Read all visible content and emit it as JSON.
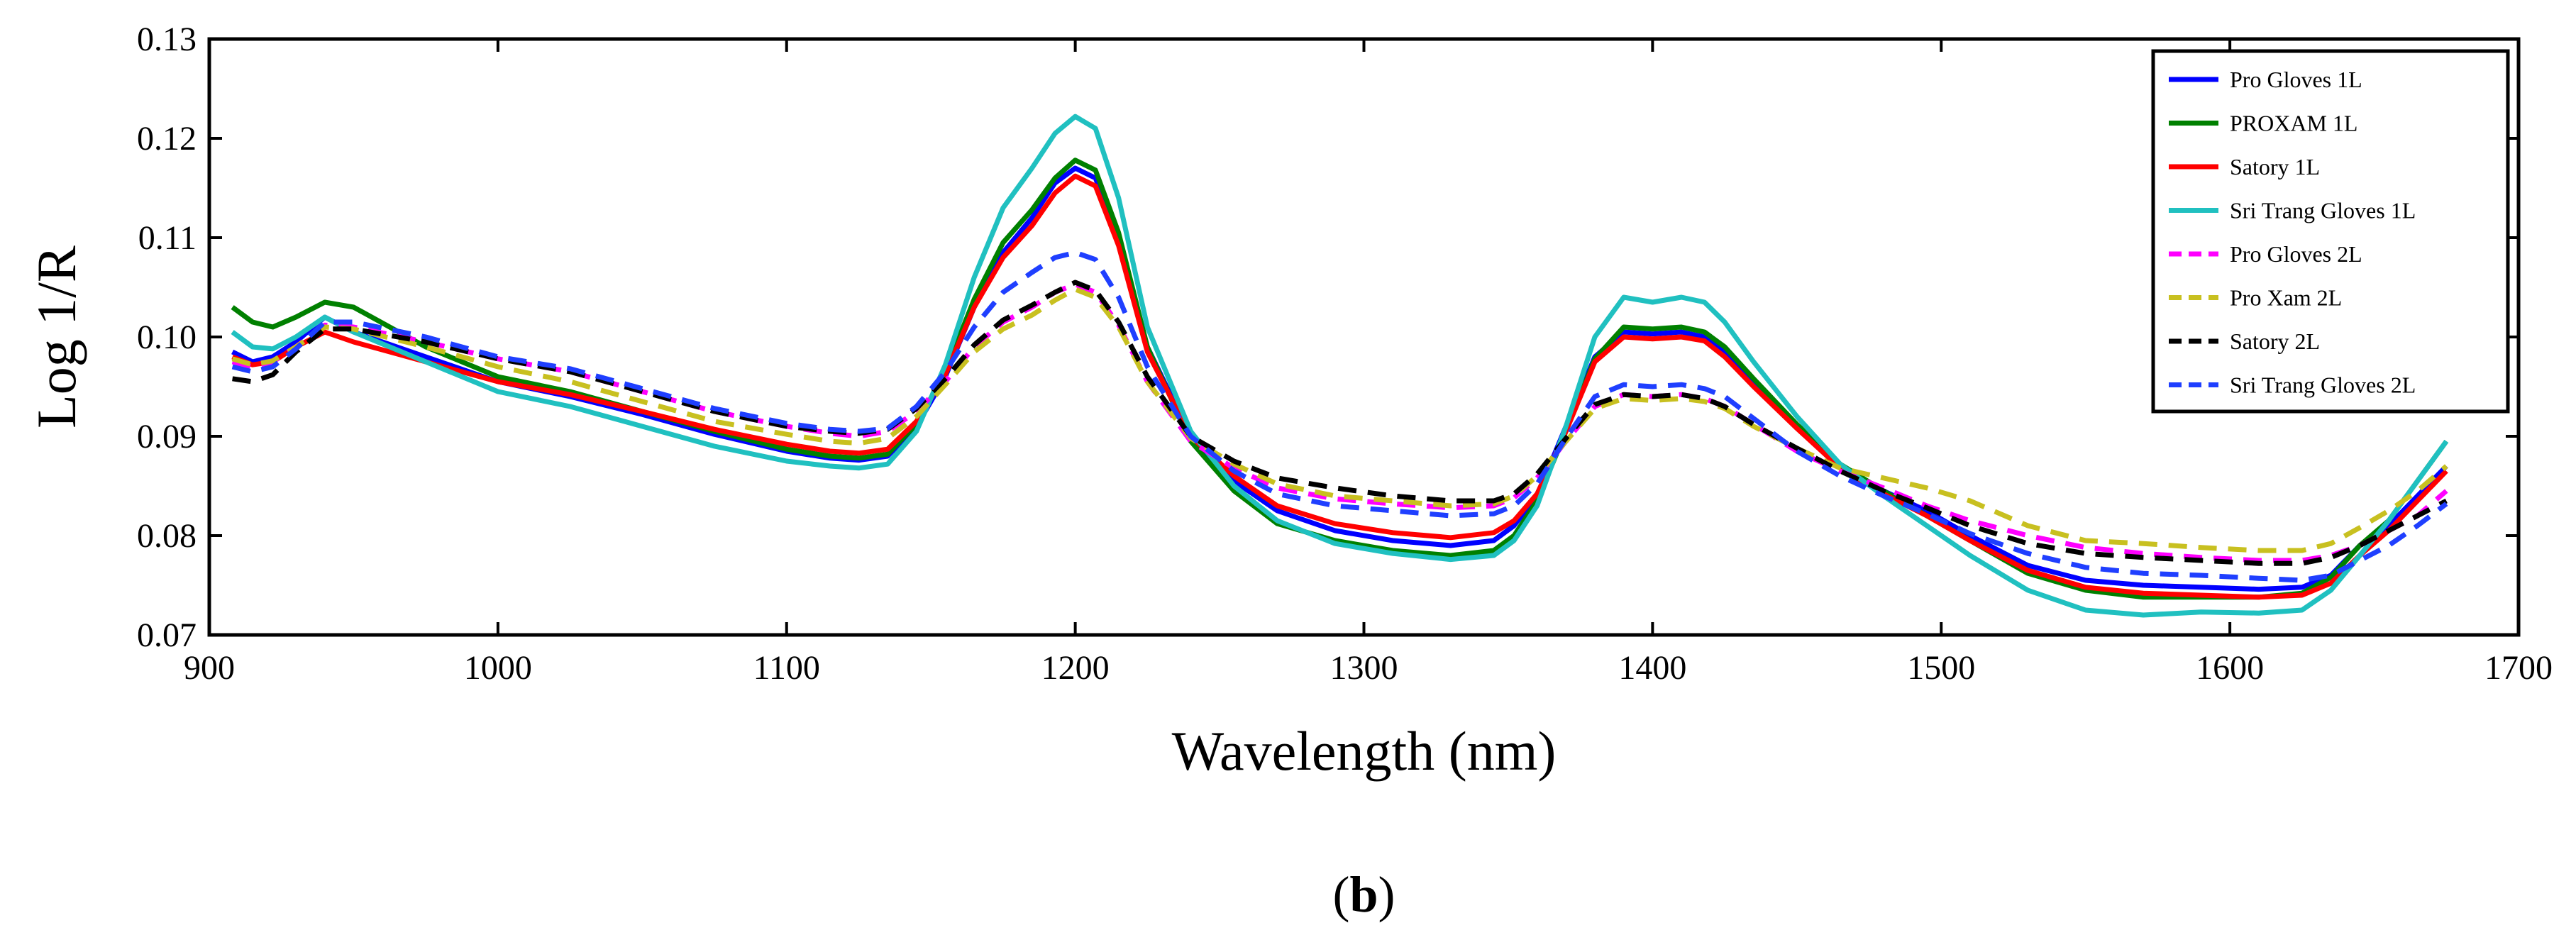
{
  "chart_data": {
    "type": "line",
    "xlabel": "Wavelength (nm)",
    "ylabel": "Log 1/R",
    "xlim": [
      900,
      1700
    ],
    "ylim": [
      0.07,
      0.13
    ],
    "x_ticks": [
      900,
      1000,
      1100,
      1200,
      1300,
      1400,
      1500,
      1600,
      1700
    ],
    "x_tick_labels": [
      "900",
      "1000",
      "1100",
      "1200",
      "1300",
      "1400",
      "1500",
      "1600",
      "1700"
    ],
    "y_ticks": [
      0.07,
      0.08,
      0.09,
      0.1,
      0.11,
      0.12,
      0.13
    ],
    "y_tick_labels": [
      "0.07",
      "0.08",
      "0.09",
      "0.10",
      "0.11",
      "0.12",
      "0.13"
    ],
    "grid": false,
    "legend_position": "top-right",
    "caption_open": "(",
    "caption_letter": "b",
    "caption_close": ")",
    "x": [
      908,
      915,
      922,
      930,
      940,
      950,
      975,
      1000,
      1025,
      1050,
      1075,
      1100,
      1115,
      1125,
      1135,
      1145,
      1155,
      1165,
      1175,
      1185,
      1193,
      1200,
      1207,
      1215,
      1225,
      1240,
      1255,
      1270,
      1290,
      1310,
      1330,
      1345,
      1352,
      1360,
      1370,
      1380,
      1390,
      1400,
      1410,
      1418,
      1425,
      1435,
      1450,
      1465,
      1480,
      1495,
      1510,
      1530,
      1550,
      1570,
      1590,
      1610,
      1625,
      1635,
      1645,
      1655,
      1665,
      1675
    ],
    "series": [
      {
        "name": "Pro Gloves 1L",
        "color": "#0000ff",
        "dash": "solid",
        "values": [
          0.0985,
          0.0975,
          0.098,
          0.0995,
          0.102,
          0.1005,
          0.098,
          0.0955,
          0.094,
          0.0922,
          0.0902,
          0.0885,
          0.0878,
          0.0876,
          0.088,
          0.091,
          0.096,
          0.103,
          0.1085,
          0.112,
          0.1155,
          0.117,
          0.116,
          0.11,
          0.099,
          0.09,
          0.0855,
          0.0825,
          0.0805,
          0.0795,
          0.079,
          0.0795,
          0.081,
          0.084,
          0.091,
          0.098,
          0.1005,
          0.1003,
          0.1005,
          0.1,
          0.0985,
          0.0955,
          0.091,
          0.087,
          0.0845,
          0.0825,
          0.08,
          0.077,
          0.0755,
          0.075,
          0.0748,
          0.0746,
          0.0748,
          0.076,
          0.079,
          0.081,
          0.084,
          0.087
        ]
      },
      {
        "name": "PROXAM 1L",
        "color": "#008000",
        "dash": "solid",
        "values": [
          0.103,
          0.1015,
          0.101,
          0.102,
          0.1035,
          0.103,
          0.099,
          0.096,
          0.0945,
          0.0925,
          0.0905,
          0.0887,
          0.088,
          0.0878,
          0.0882,
          0.0912,
          0.0965,
          0.1038,
          0.1095,
          0.1128,
          0.116,
          0.1178,
          0.1168,
          0.1105,
          0.099,
          0.0895,
          0.0845,
          0.0812,
          0.0795,
          0.0785,
          0.078,
          0.0785,
          0.08,
          0.0835,
          0.0905,
          0.0978,
          0.101,
          0.1008,
          0.101,
          0.1005,
          0.099,
          0.0958,
          0.0912,
          0.0872,
          0.0845,
          0.082,
          0.0795,
          0.0762,
          0.0745,
          0.0738,
          0.0738,
          0.0738,
          0.0742,
          0.0758,
          0.079,
          0.0815,
          0.0855,
          0.0895
        ]
      },
      {
        "name": "Satory 1L",
        "color": "#ff0000",
        "dash": "solid",
        "values": [
          0.098,
          0.0972,
          0.0975,
          0.099,
          0.1005,
          0.0995,
          0.0975,
          0.0955,
          0.0942,
          0.0925,
          0.0907,
          0.0892,
          0.0885,
          0.0883,
          0.0887,
          0.0915,
          0.0962,
          0.103,
          0.108,
          0.1112,
          0.1145,
          0.1162,
          0.1152,
          0.1092,
          0.0985,
          0.09,
          0.086,
          0.083,
          0.0812,
          0.0803,
          0.0798,
          0.0803,
          0.0815,
          0.0842,
          0.0905,
          0.0975,
          0.1,
          0.0998,
          0.1,
          0.0996,
          0.098,
          0.095,
          0.0908,
          0.0868,
          0.0842,
          0.082,
          0.0795,
          0.0765,
          0.0748,
          0.0742,
          0.074,
          0.0738,
          0.074,
          0.0752,
          0.078,
          0.0805,
          0.0835,
          0.0865
        ]
      },
      {
        "name": "Sri Trang Gloves 1L",
        "color": "#20c0c0",
        "dash": "solid",
        "values": [
          0.1005,
          0.099,
          0.0988,
          0.1,
          0.102,
          0.1005,
          0.0975,
          0.0945,
          0.093,
          0.091,
          0.089,
          0.0875,
          0.087,
          0.0868,
          0.0872,
          0.0905,
          0.0972,
          0.106,
          0.113,
          0.117,
          0.1205,
          0.1222,
          0.121,
          0.114,
          0.101,
          0.0905,
          0.085,
          0.0815,
          0.0792,
          0.0782,
          0.0776,
          0.078,
          0.0795,
          0.083,
          0.091,
          0.1,
          0.104,
          0.1035,
          0.104,
          0.1035,
          0.1015,
          0.0975,
          0.092,
          0.0872,
          0.084,
          0.081,
          0.078,
          0.0745,
          0.0725,
          0.072,
          0.0723,
          0.0722,
          0.0725,
          0.0745,
          0.078,
          0.0815,
          0.0855,
          0.0895
        ]
      },
      {
        "name": "Pro Gloves 2L",
        "color": "#ff00ff",
        "dash": "dashed",
        "values": [
          0.0975,
          0.097,
          0.0975,
          0.099,
          0.1012,
          0.101,
          0.0995,
          0.0978,
          0.0965,
          0.0945,
          0.0925,
          0.091,
          0.0903,
          0.09,
          0.0905,
          0.0925,
          0.0955,
          0.099,
          0.1015,
          0.103,
          0.1045,
          0.1053,
          0.1045,
          0.1012,
          0.0955,
          0.0895,
          0.0868,
          0.0848,
          0.0837,
          0.0832,
          0.0828,
          0.083,
          0.0838,
          0.0858,
          0.0895,
          0.093,
          0.0942,
          0.094,
          0.0942,
          0.0938,
          0.093,
          0.0912,
          0.0885,
          0.0865,
          0.0848,
          0.083,
          0.0815,
          0.08,
          0.0788,
          0.0782,
          0.0778,
          0.0775,
          0.0775,
          0.078,
          0.079,
          0.0805,
          0.082,
          0.0845
        ]
      },
      {
        "name": "Pro Xam 2L",
        "color": "#c8c020",
        "dash": "dashed",
        "values": [
          0.0978,
          0.0972,
          0.0976,
          0.099,
          0.101,
          0.1008,
          0.099,
          0.097,
          0.0955,
          0.0935,
          0.0915,
          0.0902,
          0.0895,
          0.0893,
          0.0898,
          0.092,
          0.0952,
          0.0985,
          0.1008,
          0.1022,
          0.1037,
          0.1048,
          0.104,
          0.101,
          0.0955,
          0.0898,
          0.0872,
          0.0852,
          0.084,
          0.0835,
          0.083,
          0.0832,
          0.084,
          0.086,
          0.0895,
          0.0928,
          0.0938,
          0.0936,
          0.0938,
          0.0935,
          0.0928,
          0.091,
          0.0888,
          0.0868,
          0.0858,
          0.0848,
          0.0835,
          0.081,
          0.0795,
          0.0792,
          0.0788,
          0.0785,
          0.0785,
          0.0792,
          0.0808,
          0.0825,
          0.0845,
          0.087
        ]
      },
      {
        "name": "Satory 2L",
        "color": "#000000",
        "dash": "dashed",
        "values": [
          0.0958,
          0.0955,
          0.0962,
          0.0985,
          0.1008,
          0.1008,
          0.0995,
          0.0978,
          0.0965,
          0.0945,
          0.0925,
          0.091,
          0.0905,
          0.0903,
          0.0907,
          0.0928,
          0.0958,
          0.0992,
          0.1017,
          0.1032,
          0.1045,
          0.1055,
          0.1047,
          0.1015,
          0.096,
          0.09,
          0.0875,
          0.0858,
          0.0848,
          0.084,
          0.0835,
          0.0835,
          0.0842,
          0.0862,
          0.0898,
          0.0932,
          0.0942,
          0.094,
          0.0942,
          0.0938,
          0.093,
          0.0912,
          0.0888,
          0.0865,
          0.0845,
          0.0828,
          0.081,
          0.0792,
          0.0782,
          0.0778,
          0.0775,
          0.0772,
          0.0772,
          0.0778,
          0.079,
          0.0805,
          0.082,
          0.0835
        ]
      },
      {
        "name": "Sri Trang Gloves 2L",
        "color": "#1f3fff",
        "dash": "dashed",
        "values": [
          0.097,
          0.0965,
          0.097,
          0.0988,
          0.1015,
          0.1015,
          0.1,
          0.098,
          0.0968,
          0.0948,
          0.0928,
          0.0913,
          0.0907,
          0.0905,
          0.0908,
          0.093,
          0.0965,
          0.101,
          0.1045,
          0.1065,
          0.108,
          0.1085,
          0.1078,
          0.104,
          0.097,
          0.09,
          0.0865,
          0.0842,
          0.083,
          0.0825,
          0.082,
          0.0822,
          0.083,
          0.0852,
          0.0898,
          0.094,
          0.0952,
          0.095,
          0.0952,
          0.0948,
          0.094,
          0.0918,
          0.0885,
          0.086,
          0.084,
          0.0822,
          0.0802,
          0.0782,
          0.0768,
          0.0762,
          0.076,
          0.0757,
          0.0755,
          0.076,
          0.0775,
          0.079,
          0.081,
          0.0832
        ]
      }
    ]
  }
}
